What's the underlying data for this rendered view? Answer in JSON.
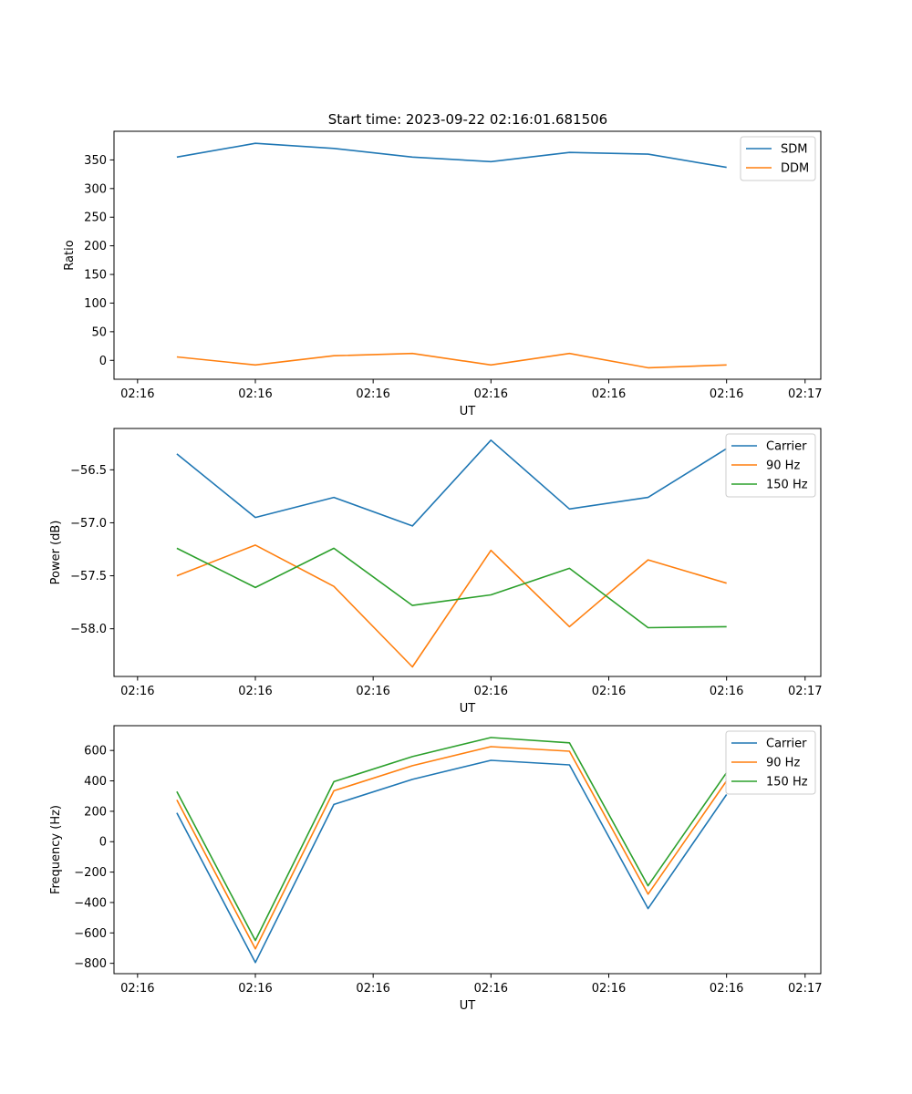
{
  "figure": {
    "title": "Start time: 2023-09-22 02:16:01.681506"
  },
  "chart_data": [
    {
      "type": "line",
      "title": "Start time: 2023-09-22 02:16:01.681506",
      "xlabel": "UT",
      "ylabel": "Ratio",
      "x": [
        1,
        2,
        3,
        4,
        5,
        6,
        7,
        8
      ],
      "xlim": [
        0.2,
        9.2
      ],
      "xticks": [
        0.5,
        2.0,
        3.5,
        5.0,
        6.5,
        8.0,
        9.0
      ],
      "xtick_labels": [
        "02:16",
        "02:16",
        "02:16",
        "02:16",
        "02:16",
        "02:16",
        "02:17"
      ],
      "ylim": [
        -33,
        400
      ],
      "yticks": [
        0,
        50,
        100,
        150,
        200,
        250,
        300,
        350
      ],
      "ytick_labels": [
        "0",
        "50",
        "100",
        "150",
        "200",
        "250",
        "300",
        "350"
      ],
      "legend_position": "top-right",
      "series": [
        {
          "name": "SDM",
          "color": "#1f77b4",
          "values": [
            355,
            379,
            370,
            355,
            347,
            363,
            360,
            337
          ]
        },
        {
          "name": "DDM",
          "color": "#ff7f0e",
          "values": [
            6,
            -8,
            8,
            12,
            -8,
            12,
            -13,
            -8
          ]
        }
      ]
    },
    {
      "type": "line",
      "title": "",
      "xlabel": "UT",
      "ylabel": "Power (dB)",
      "x": [
        1,
        2,
        3,
        4,
        5,
        6,
        7,
        8
      ],
      "xlim": [
        0.2,
        9.2
      ],
      "xticks": [
        0.5,
        2.0,
        3.5,
        5.0,
        6.5,
        8.0,
        9.0
      ],
      "xtick_labels": [
        "02:16",
        "02:16",
        "02:16",
        "02:16",
        "02:16",
        "02:16",
        "02:17"
      ],
      "ylim": [
        -58.45,
        -56.11
      ],
      "yticks": [
        -58.0,
        -57.5,
        -57.0,
        -56.5
      ],
      "ytick_labels": [
        "−58.0",
        "−57.5",
        "−57.0",
        "−56.5"
      ],
      "legend_position": "top-right",
      "series": [
        {
          "name": "Carrier",
          "color": "#1f77b4",
          "values": [
            -56.35,
            -56.95,
            -56.76,
            -57.03,
            -56.22,
            -56.87,
            -56.76,
            -56.3
          ]
        },
        {
          "name": "90 Hz",
          "color": "#ff7f0e",
          "values": [
            -57.5,
            -57.21,
            -57.6,
            -58.36,
            -57.26,
            -57.98,
            -57.35,
            -57.57
          ]
        },
        {
          "name": "150 Hz",
          "color": "#2ca02c",
          "values": [
            -57.24,
            -57.61,
            -57.24,
            -57.78,
            -57.68,
            -57.43,
            -57.99,
            -57.98
          ]
        }
      ]
    },
    {
      "type": "line",
      "title": "",
      "xlabel": "UT",
      "ylabel": "Frequency (Hz)",
      "x": [
        1,
        2,
        3,
        4,
        5,
        6,
        7,
        8
      ],
      "xlim": [
        0.2,
        9.2
      ],
      "xticks": [
        0.5,
        2.0,
        3.5,
        5.0,
        6.5,
        8.0,
        9.0
      ],
      "xtick_labels": [
        "02:16",
        "02:16",
        "02:16",
        "02:16",
        "02:16",
        "02:16",
        "02:17"
      ],
      "ylim": [
        -868,
        763
      ],
      "yticks": [
        -800,
        -600,
        -400,
        -200,
        0,
        200,
        400,
        600
      ],
      "ytick_labels": [
        "−800",
        "−600",
        "−400",
        "−200",
        "0",
        "200",
        "400",
        "600"
      ],
      "legend_position": "top-right",
      "series": [
        {
          "name": "Carrier",
          "color": "#1f77b4",
          "values": [
            190,
            -795,
            245,
            410,
            535,
            505,
            -440,
            310
          ]
        },
        {
          "name": "90 Hz",
          "color": "#ff7f0e",
          "values": [
            275,
            -705,
            335,
            500,
            625,
            595,
            -345,
            400
          ]
        },
        {
          "name": "150 Hz",
          "color": "#2ca02c",
          "values": [
            330,
            -650,
            395,
            560,
            685,
            650,
            -290,
            455
          ]
        }
      ]
    }
  ]
}
